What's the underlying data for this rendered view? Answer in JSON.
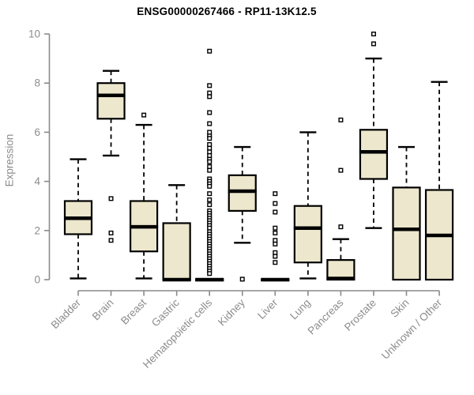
{
  "chart_data": {
    "type": "boxplot",
    "title": "ENSG00000267466 - RP11-13K12.5",
    "ylabel": "Expression",
    "xlabel": "",
    "ylim": [
      0,
      10
    ],
    "yticks": [
      "0",
      "2",
      "4",
      "6",
      "8",
      "10"
    ],
    "grid": false,
    "legend_position": "none",
    "categories": [
      "Bladder",
      "Brain",
      "Breast",
      "Gastric",
      "Hematopoietic cells",
      "Kidney",
      "Liver",
      "Lung",
      "Pancreas",
      "Prostate",
      "Skin",
      "Unknown / Other"
    ],
    "series": [
      {
        "name": "Bladder",
        "low": 0.05,
        "q1": 1.85,
        "median": 2.5,
        "q3": 3.2,
        "high": 4.9,
        "outliers": []
      },
      {
        "name": "Brain",
        "low": 5.05,
        "q1": 6.55,
        "median": 7.5,
        "q3": 8.0,
        "high": 8.5,
        "outliers": [
          3.3,
          1.9,
          1.6
        ]
      },
      {
        "name": "Breast",
        "low": 0.05,
        "q1": 1.15,
        "median": 2.15,
        "q3": 3.2,
        "high": 6.3,
        "outliers": [
          6.7
        ]
      },
      {
        "name": "Gastric",
        "low": 0,
        "q1": 0,
        "median": 0,
        "q3": 2.3,
        "high": 3.85,
        "outliers": []
      },
      {
        "name": "Hematopoietic cells",
        "low": 0,
        "q1": 0,
        "median": 0,
        "q3": 0,
        "high": 0,
        "outliers": [
          9.3,
          7.9,
          7.6,
          7.45,
          6.8,
          6.35,
          6.0,
          5.85,
          5.75,
          5.5,
          5.35,
          5.2,
          5.05,
          4.9,
          4.8,
          4.6,
          4.45,
          4.1,
          4.0,
          3.9,
          3.8,
          3.5,
          3.25,
          3.05,
          2.8,
          2.7,
          2.6,
          2.5,
          2.4,
          2.3,
          2.2,
          2.1,
          1.95,
          1.85,
          1.75,
          1.65,
          1.55,
          1.45,
          1.35,
          1.25,
          1.15,
          1.05,
          0.95,
          0.85,
          0.75,
          0.65,
          0.55,
          0.45,
          0.35,
          0.25
        ]
      },
      {
        "name": "Kidney",
        "low": 1.5,
        "q1": 2.8,
        "median": 3.6,
        "q3": 4.25,
        "high": 5.4,
        "outliers": [
          0.02
        ]
      },
      {
        "name": "Liver",
        "low": 0,
        "q1": 0,
        "median": 0,
        "q3": 0,
        "high": 0,
        "outliers": [
          3.5,
          3.1,
          2.75,
          2.1,
          1.9,
          1.6,
          1.45,
          1.1,
          0.95,
          0.7
        ]
      },
      {
        "name": "Lung",
        "low": 0.05,
        "q1": 0.7,
        "median": 2.1,
        "q3": 3.0,
        "high": 6.0,
        "outliers": []
      },
      {
        "name": "Pancreas",
        "low": 0,
        "q1": 0,
        "median": 0.05,
        "q3": 0.8,
        "high": 1.65,
        "outliers": [
          6.5,
          4.45,
          2.15
        ]
      },
      {
        "name": "Prostate",
        "low": 2.1,
        "q1": 4.1,
        "median": 5.2,
        "q3": 6.1,
        "high": 9.0,
        "outliers": [
          10.0,
          9.6
        ]
      },
      {
        "name": "Skin",
        "low": 0,
        "q1": 0,
        "median": 2.05,
        "q3": 3.75,
        "high": 5.4,
        "outliers": []
      },
      {
        "name": "Unknown / Other",
        "low": 0,
        "q1": 0,
        "median": 1.8,
        "q3": 3.65,
        "high": 8.05,
        "outliers": []
      }
    ],
    "colors": {
      "box_fill": "#ece7cd",
      "box_border": "#000000",
      "whisker": "#000000",
      "outlier_fill": "#ffffff",
      "axis": "#8a8a8a",
      "tick_label": "#8c8c8c",
      "title": "#000000",
      "background": "#ffffff"
    }
  }
}
